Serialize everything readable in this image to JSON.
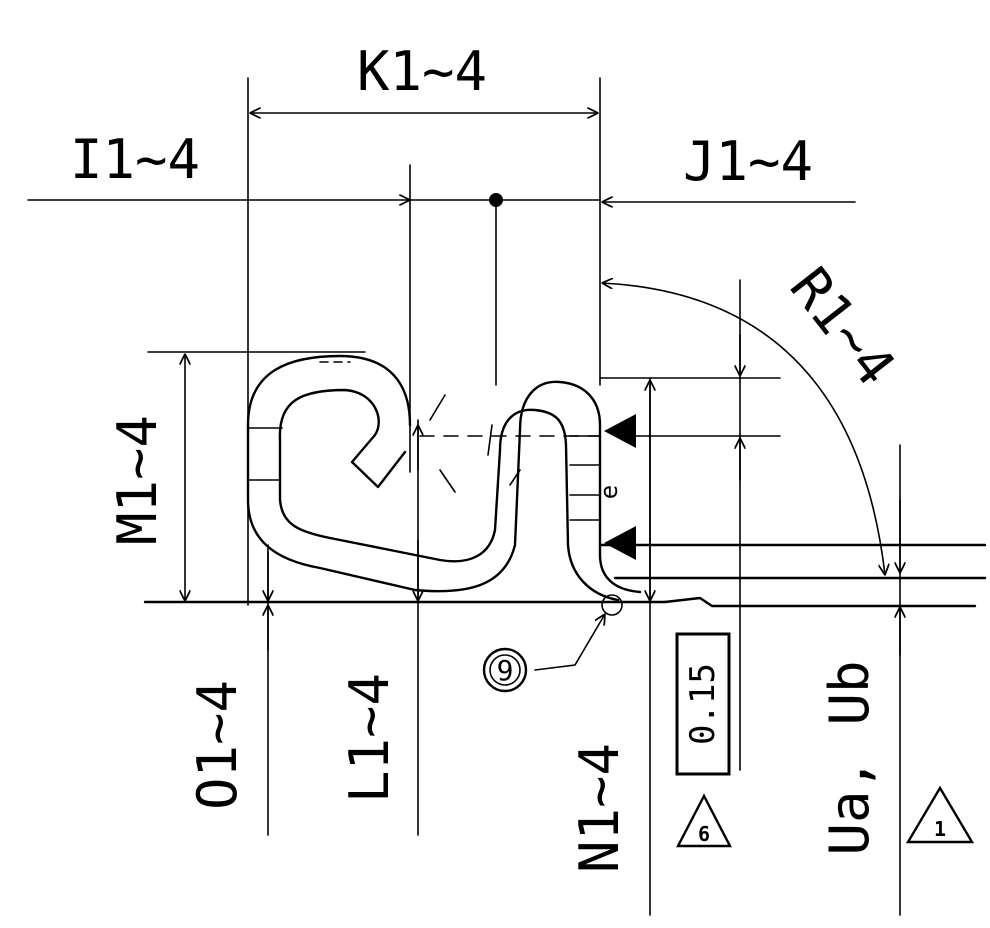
{
  "labels": {
    "k": "K1~4",
    "i": "I1~4",
    "j": "J1~4",
    "r": "R1~4",
    "m": "M1~4",
    "o": "O1~4",
    "l": "L1~4",
    "n": "N1~4",
    "u": "Ua, Ub",
    "boxed_value": "0.15",
    "circled_ref": "9",
    "rev_tag_6": "6",
    "rev_tag_1": "1",
    "weld_mark": "e"
  }
}
